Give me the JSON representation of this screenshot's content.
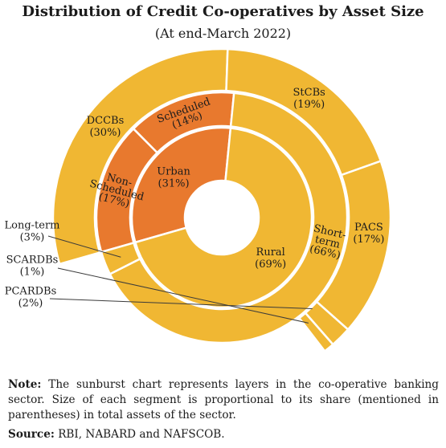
{
  "chart_data": {
    "type": "sunburst",
    "title": "Distribution of Credit Co-operatives by Asset Size",
    "subtitle": "(At end-March 2022)",
    "colors": {
      "rural": "#f0b733",
      "urban": "#e8792e",
      "separator": "#ffffff"
    },
    "inner_ring": [
      {
        "name": "Urban",
        "percent": 31,
        "label": "Urban\n(31%)"
      },
      {
        "name": "Rural",
        "percent": 69,
        "label": "Rural\n(69%)"
      }
    ],
    "middle_ring": [
      {
        "name": "Non-Scheduled",
        "percent": 17,
        "parent": "Urban",
        "label": "Non-\nScheduled\n(17%)"
      },
      {
        "name": "Scheduled",
        "percent": 14,
        "parent": "Urban",
        "label": "Scheduled\n(14%)"
      },
      {
        "name": "Short-term",
        "percent": 66,
        "parent": "Rural",
        "label": "Short-\nterm\n(66%)"
      },
      {
        "name": "Long-term",
        "percent": 3,
        "parent": "Rural",
        "label": "Long-term\n(3%)"
      }
    ],
    "outer_ring": [
      {
        "name": "DCCBs",
        "percent": 30,
        "parent": "Short-term",
        "label": "DCCBs\n(30%)"
      },
      {
        "name": "StCBs",
        "percent": 19,
        "parent": "Short-term",
        "label": "StCBs\n(19%)"
      },
      {
        "name": "PACS",
        "percent": 17,
        "parent": "Short-term",
        "label": "PACS\n(17%)"
      },
      {
        "name": "PCARDBs",
        "percent": 2,
        "parent": "Long-term",
        "label": "PCARDBs\n(2%)"
      },
      {
        "name": "SCARDBs",
        "percent": 1,
        "parent": "Long-term",
        "label": "SCARDBs\n(1%)"
      }
    ]
  },
  "note": {
    "label": "Note:",
    "text": " The sunburst chart represents layers in the co-operative banking sector. Size of each segment is proportional to its share (mentioned in parentheses) in total assets of the sector."
  },
  "source": {
    "label": "Source:",
    "text": " RBI, NABARD and NAFSCOB."
  }
}
